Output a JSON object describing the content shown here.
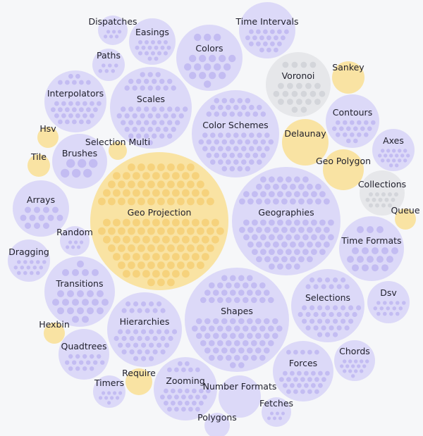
{
  "colors": {
    "background": "#f6f7f9",
    "purple_circle": "#dcd9f8",
    "purple_dot": "#c3bcf2",
    "yellow_circle": "#f9e3a3",
    "yellow_dot": "#f6d27c",
    "gray_circle": "#e6e7ea",
    "gray_dot": "#d3d5da",
    "label": "#1f1f2b"
  },
  "bubbles": [
    {
      "label": "Geo Projection",
      "color": "yellow"
    },
    {
      "label": "Geographies",
      "color": "purple"
    },
    {
      "label": "Shapes",
      "color": "purple"
    },
    {
      "label": "Color Schemes",
      "color": "purple"
    },
    {
      "label": "Scales",
      "color": "purple"
    },
    {
      "label": "Hierarchies",
      "color": "purple"
    },
    {
      "label": "Selections",
      "color": "purple"
    },
    {
      "label": "Transitions",
      "color": "purple"
    },
    {
      "label": "Interpolators",
      "color": "purple"
    },
    {
      "label": "Colors",
      "color": "purple"
    },
    {
      "label": "Time Formats",
      "color": "purple"
    },
    {
      "label": "Zooming",
      "color": "purple"
    },
    {
      "label": "Forces",
      "color": "purple"
    },
    {
      "label": "Voronoi",
      "color": "gray"
    },
    {
      "label": "Time Intervals",
      "color": "purple"
    },
    {
      "label": "Contours",
      "color": "purple"
    },
    {
      "label": "Arrays",
      "color": "purple"
    },
    {
      "label": "Brushes",
      "color": "purple"
    },
    {
      "label": "Quadtrees",
      "color": "purple"
    },
    {
      "label": "Easings",
      "color": "purple"
    },
    {
      "label": "Delaunay",
      "color": "yellow"
    },
    {
      "label": "Collections",
      "color": "gray"
    },
    {
      "label": "Number Formats",
      "color": "purple"
    },
    {
      "label": "Dsv",
      "color": "purple"
    },
    {
      "label": "Dragging",
      "color": "purple"
    },
    {
      "label": "Chords",
      "color": "purple"
    },
    {
      "label": "Axes",
      "color": "purple"
    },
    {
      "label": "Geo Polygon",
      "color": "yellow"
    },
    {
      "label": "Paths",
      "color": "purple"
    },
    {
      "label": "Dispatches",
      "color": "purple"
    },
    {
      "label": "Random",
      "color": "purple"
    },
    {
      "label": "Timers",
      "color": "purple"
    },
    {
      "label": "Fetches",
      "color": "purple"
    },
    {
      "label": "Sankey",
      "color": "yellow"
    },
    {
      "label": "Require",
      "color": "yellow"
    },
    {
      "label": "Hsv",
      "color": "yellow"
    },
    {
      "label": "Tile",
      "color": "yellow"
    },
    {
      "label": "Hexbin",
      "color": "yellow"
    },
    {
      "label": "Queue",
      "color": "yellow"
    },
    {
      "label": "Selection Multi",
      "color": "yellow"
    },
    {
      "label": "Polygons",
      "color": "purple"
    }
  ]
}
